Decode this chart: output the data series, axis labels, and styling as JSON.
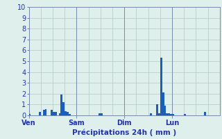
{
  "title": "Précipitations 24h ( mm )",
  "background_color": "#dff0ec",
  "bar_color": "#1a5eb8",
  "ylim": [
    0,
    10
  ],
  "yticks": [
    0,
    1,
    2,
    3,
    4,
    5,
    6,
    7,
    8,
    9,
    10
  ],
  "day_labels": [
    "Ven",
    "Sam",
    "Dim",
    "Lun"
  ],
  "day_positions": [
    0,
    24,
    48,
    72
  ],
  "total_hours": 96,
  "values": [
    0.1,
    0.0,
    0.0,
    0.0,
    0.0,
    0.3,
    0.0,
    0.5,
    0.6,
    0.0,
    0.0,
    0.5,
    0.3,
    0.3,
    0.0,
    0.2,
    1.9,
    1.2,
    0.4,
    0.3,
    0.1,
    0.0,
    0.0,
    0.0,
    0.0,
    0.0,
    0.0,
    0.0,
    0.0,
    0.0,
    0.0,
    0.0,
    0.0,
    0.0,
    0.0,
    0.2,
    0.2,
    0.0,
    0.0,
    0.0,
    0.0,
    0.0,
    0.0,
    0.0,
    0.0,
    0.0,
    0.0,
    0.0,
    0.0,
    0.0,
    0.0,
    0.0,
    0.0,
    0.0,
    0.0,
    0.0,
    0.0,
    0.0,
    0.0,
    0.0,
    0.0,
    0.2,
    0.0,
    0.0,
    1.0,
    0.2,
    5.3,
    2.1,
    0.9,
    0.2,
    0.2,
    0.1,
    0.1,
    0.0,
    0.0,
    0.0,
    0.0,
    0.0,
    0.1,
    0.0,
    0.0,
    0.0,
    0.0,
    0.0,
    0.0,
    0.0,
    0.0,
    0.0,
    0.3,
    0.0,
    0.0,
    0.0,
    0.0,
    0.0,
    0.0,
    0.0
  ],
  "grid_color": "#b0c8c0",
  "separator_color": "#7788aa",
  "tick_color": "#3344aa",
  "label_color": "#2233aa"
}
